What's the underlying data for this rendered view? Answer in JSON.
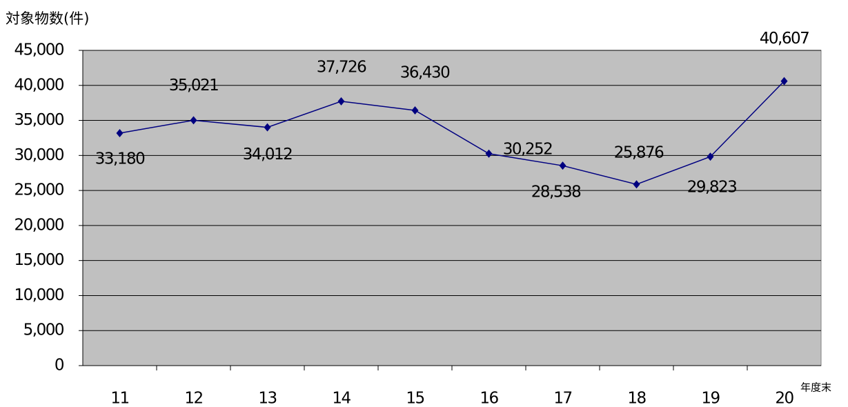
{
  "chart_data": {
    "type": "line",
    "y_axis_label": "対象物数(件)",
    "x_axis_label": "年度末",
    "categories": [
      "11",
      "12",
      "13",
      "14",
      "15",
      "16",
      "17",
      "18",
      "19",
      "20"
    ],
    "series": [
      {
        "name": "対象物数",
        "color": "#000080",
        "values": [
          33180,
          35021,
          34012,
          37726,
          36430,
          30252,
          28538,
          25876,
          29823,
          40607
        ],
        "value_labels": [
          "33,180",
          "35,021",
          "34,012",
          "37,726",
          "36,430",
          "30,252",
          "28,538",
          "25,876",
          "29,823",
          "40,607"
        ]
      }
    ],
    "ylim": [
      0,
      45000
    ],
    "yticks": [
      0,
      {
        "value": 5000,
        "label": "5,000"
      },
      {
        "value": 10000,
        "label": "10,000"
      },
      {
        "value": 15000,
        "label": "15,000"
      },
      {
        "value": 20000,
        "label": "20,000"
      },
      {
        "value": 25000,
        "label": "25,000"
      },
      {
        "value": 30000,
        "label": "30,000"
      },
      {
        "value": 35000,
        "label": "35,000"
      },
      {
        "value": 40000,
        "label": "40,000"
      },
      {
        "value": 45000,
        "label": "45,000"
      }
    ],
    "grid": true,
    "plot_background": "#c0c0c0"
  }
}
